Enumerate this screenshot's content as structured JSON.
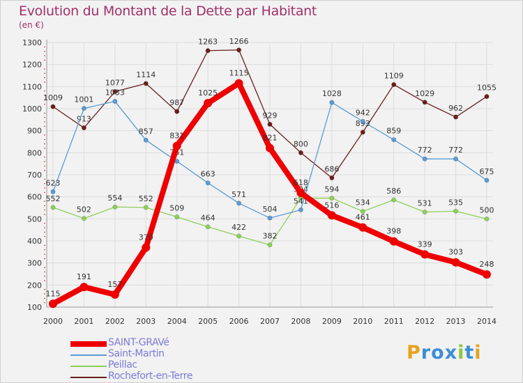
{
  "chart_data": {
    "type": "line",
    "title": "Evolution du Montant de la Dette par Habitant",
    "subtitle": "(en €)",
    "xlabel": "",
    "ylabel": "",
    "ylim": [
      100,
      1300
    ],
    "yticks": [
      100,
      200,
      300,
      400,
      500,
      600,
      700,
      800,
      900,
      1000,
      1100,
      1200,
      1300
    ],
    "categories": [
      "2000",
      "2001",
      "2002",
      "2003",
      "2004",
      "2005",
      "2006",
      "2007",
      "2008",
      "2009",
      "2010",
      "2011",
      "2012",
      "2013",
      "2014"
    ],
    "series": [
      {
        "name": "Rochefort-en-Terre",
        "color": "#6b1e1e",
        "values": [
          1009,
          913,
          1077,
          1114,
          987,
          1263,
          1266,
          929,
          800,
          686,
          893,
          1109,
          1029,
          962,
          1055
        ]
      },
      {
        "name": "Peillac",
        "color": "#8ecf5a",
        "values": [
          552,
          502,
          554,
          552,
          509,
          464,
          422,
          382,
          594,
          594,
          534,
          586,
          531,
          535,
          500
        ]
      },
      {
        "name": "Saint-Martin",
        "color": "#5a9bd4",
        "values": [
          623,
          1001,
          1033,
          857,
          761,
          663,
          571,
          504,
          541,
          1028,
          942,
          859,
          772,
          772,
          675
        ]
      },
      {
        "name": "SAINT-GRAVé",
        "color": "#ee0000",
        "values": [
          115,
          191,
          157,
          370,
          831,
          1025,
          1115,
          821,
          618,
          516,
          461,
          398,
          339,
          303,
          248
        ]
      }
    ],
    "legend_order": [
      "SAINT-GRAVé",
      "Saint-Martin",
      "Peillac",
      "Rochefort-en-Terre"
    ]
  },
  "colors": {
    "title": "#a0306a",
    "grid": "#dcdcdc",
    "legend_text": "#7b7bd9"
  },
  "logo": {
    "letters": [
      "P",
      "r",
      "o",
      "x",
      "i",
      "t",
      "i"
    ],
    "colors": [
      "#e8a21a",
      "#3a8fd6",
      "#3a8fd6",
      "#3a8fd6",
      "#8cc63f",
      "#3a8fd6",
      "#e8a21a"
    ]
  }
}
